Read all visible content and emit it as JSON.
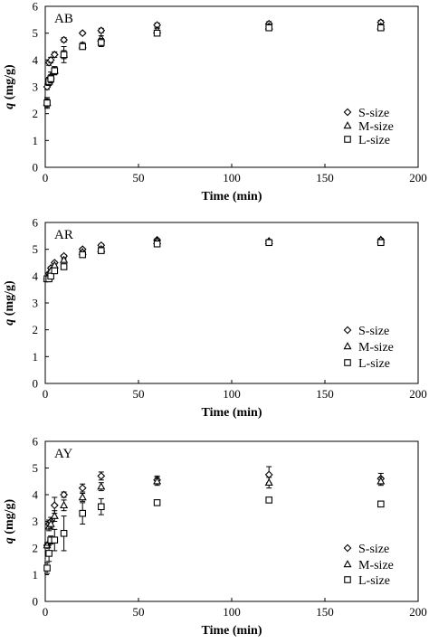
{
  "chart_data": [
    {
      "type": "scatter",
      "panel_label": "AB",
      "xlabel": "Time (min)",
      "ylabel_var": "q",
      "ylabel_unit": " (mg/g)",
      "xlim": [
        0,
        200
      ],
      "ylim": [
        0,
        6
      ],
      "xticks": [
        0,
        50,
        100,
        150,
        200
      ],
      "yticks": [
        0,
        1,
        2,
        3,
        4,
        5,
        6
      ],
      "legend_position": "right",
      "series": [
        {
          "name": "S-size",
          "marker": "diamond",
          "x": [
            1,
            2,
            3,
            5,
            10,
            20,
            30,
            60,
            120,
            180
          ],
          "y": [
            3.0,
            3.9,
            4.0,
            4.2,
            4.75,
            5.0,
            5.1,
            5.3,
            5.35,
            5.4
          ],
          "err": [
            0.1,
            0.1,
            0.1,
            0.1,
            0.08,
            0.05,
            0.08,
            0.08,
            0.08,
            0.08
          ]
        },
        {
          "name": "M-size",
          "marker": "triangle",
          "x": [
            1,
            2,
            3,
            5,
            10,
            20,
            30,
            60,
            120,
            180
          ],
          "y": [
            2.4,
            3.2,
            3.4,
            3.6,
            4.2,
            4.55,
            4.8,
            5.1,
            5.25,
            5.25
          ],
          "err": [
            0.2,
            0.15,
            0.15,
            0.15,
            0.15,
            0.1,
            0.1,
            0.08,
            0.08,
            0.08
          ]
        },
        {
          "name": "L-size",
          "marker": "square",
          "x": [
            1,
            2,
            3,
            5,
            10,
            20,
            30,
            60,
            120,
            180
          ],
          "y": [
            2.4,
            3.2,
            3.3,
            3.6,
            4.2,
            4.5,
            4.65,
            5.0,
            5.2,
            5.2
          ],
          "err": [
            0.15,
            0.15,
            0.15,
            0.15,
            0.3,
            0.1,
            0.15,
            0.08,
            0.08,
            0.08
          ]
        }
      ]
    },
    {
      "type": "scatter",
      "panel_label": "AR",
      "xlabel": "Time (min)",
      "ylabel_var": "q",
      "ylabel_unit": " (mg/g)",
      "xlim": [
        0,
        200
      ],
      "ylim": [
        0,
        6
      ],
      "xticks": [
        0,
        50,
        100,
        150,
        200
      ],
      "yticks": [
        0,
        1,
        2,
        3,
        4,
        5,
        6
      ],
      "legend_position": "right",
      "series": [
        {
          "name": "S-size",
          "marker": "diamond",
          "x": [
            1,
            2,
            3,
            5,
            10,
            20,
            30,
            60,
            120,
            180
          ],
          "y": [
            3.9,
            4.1,
            4.3,
            4.5,
            4.75,
            5.0,
            5.15,
            5.35,
            5.3,
            5.35
          ],
          "err": [
            0.05,
            0.05,
            0.05,
            0.05,
            0.05,
            0.05,
            0.05,
            0.05,
            0.05,
            0.05
          ]
        },
        {
          "name": "M-size",
          "marker": "triangle",
          "x": [
            1,
            2,
            3,
            5,
            10,
            20,
            30,
            60,
            120,
            180
          ],
          "y": [
            3.9,
            4.0,
            4.2,
            4.4,
            4.6,
            4.9,
            5.0,
            5.3,
            5.3,
            5.35
          ],
          "err": [
            0.05,
            0.05,
            0.05,
            0.05,
            0.05,
            0.05,
            0.05,
            0.05,
            0.05,
            0.05
          ]
        },
        {
          "name": "L-size",
          "marker": "square",
          "x": [
            1,
            2,
            3,
            5,
            10,
            20,
            30,
            60,
            120,
            180
          ],
          "y": [
            3.9,
            3.9,
            4.0,
            4.2,
            4.35,
            4.8,
            4.95,
            5.2,
            5.25,
            5.25
          ],
          "err": [
            0.05,
            0.05,
            0.05,
            0.1,
            0.1,
            0.05,
            0.05,
            0.05,
            0.05,
            0.05
          ]
        }
      ]
    },
    {
      "type": "scatter",
      "panel_label": "AY",
      "xlabel": "Time (min)",
      "ylabel_var": "q",
      "ylabel_unit": " (mg/g)",
      "xlim": [
        0,
        200
      ],
      "ylim": [
        0,
        6
      ],
      "xticks": [
        0,
        50,
        100,
        150,
        200
      ],
      "yticks": [
        0,
        1,
        2,
        3,
        4,
        5,
        6
      ],
      "legend_position": "right",
      "series": [
        {
          "name": "S-size",
          "marker": "diamond",
          "x": [
            1,
            2,
            3,
            5,
            10,
            20,
            30,
            60,
            120,
            180
          ],
          "y": [
            2.1,
            2.9,
            3.0,
            3.6,
            4.0,
            4.25,
            4.7,
            4.55,
            4.75,
            4.6
          ],
          "err": [
            0.1,
            0.15,
            0.15,
            0.3,
            0.1,
            0.15,
            0.15,
            0.15,
            0.3,
            0.2
          ]
        },
        {
          "name": "M-size",
          "marker": "triangle",
          "x": [
            1,
            2,
            3,
            5,
            10,
            20,
            30,
            60,
            120,
            180
          ],
          "y": [
            2.1,
            2.8,
            2.9,
            3.2,
            3.6,
            3.9,
            4.3,
            4.5,
            4.45,
            4.5
          ],
          "err": [
            0.1,
            0.15,
            0.15,
            0.2,
            0.2,
            0.15,
            0.15,
            0.15,
            0.2,
            0.15
          ]
        },
        {
          "name": "L-size",
          "marker": "square",
          "x": [
            1,
            2,
            3,
            5,
            10,
            20,
            30,
            60,
            120,
            180
          ],
          "y": [
            1.25,
            1.8,
            2.3,
            2.3,
            2.55,
            3.3,
            3.55,
            3.7,
            3.8,
            3.65
          ],
          "err": [
            0.2,
            0.3,
            0.15,
            0.4,
            0.65,
            0.4,
            0.3,
            0.1,
            0.08,
            0.08
          ]
        }
      ]
    }
  ]
}
